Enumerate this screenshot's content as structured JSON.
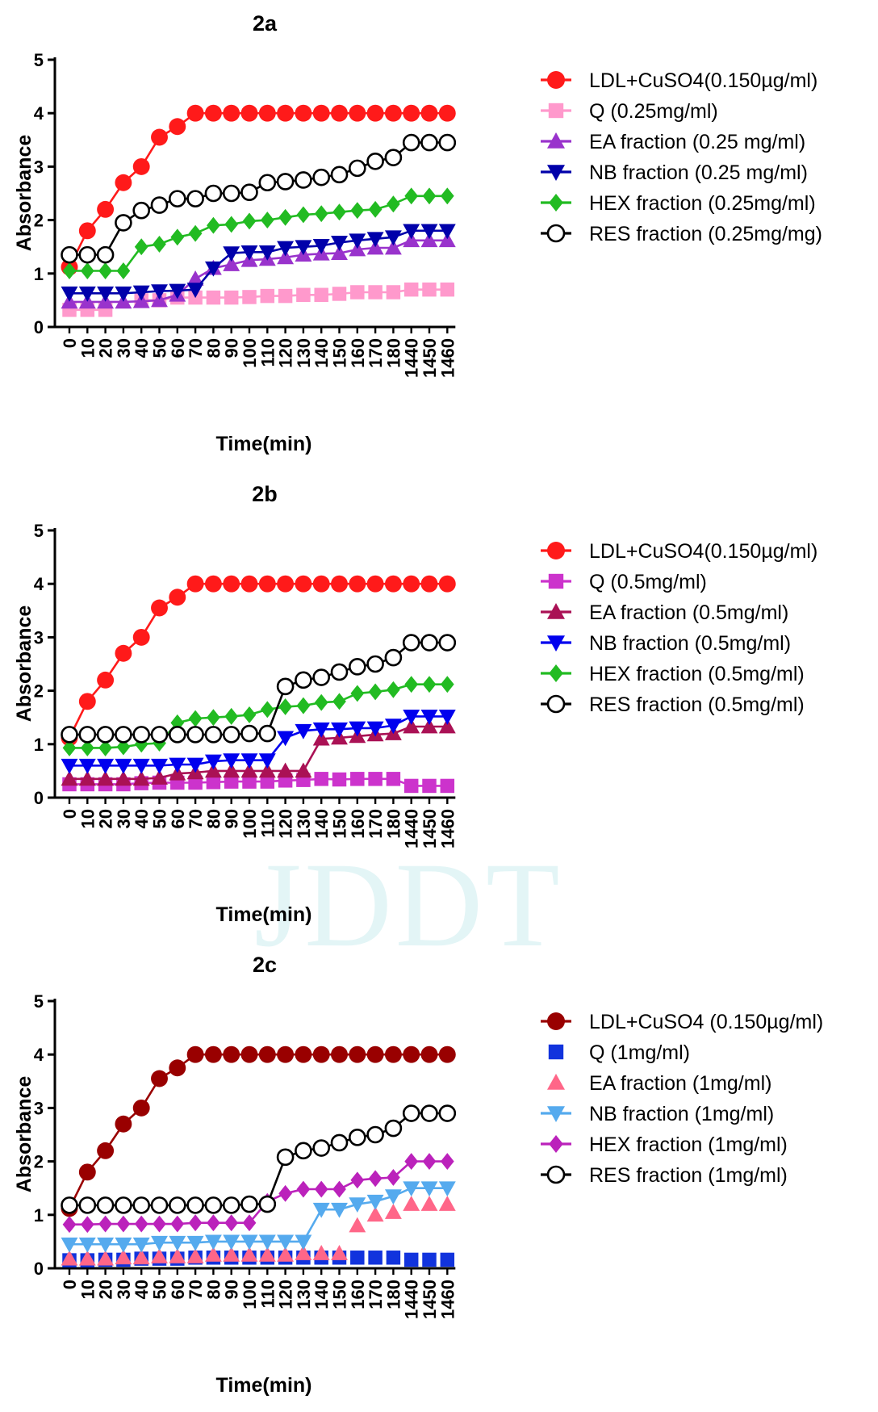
{
  "watermark": "JDDT",
  "chart_data": [
    {
      "type": "line",
      "title": "2a",
      "xlabel": "Time(min)",
      "ylabel": "Absorbance",
      "categories": [
        "0",
        "10",
        "20",
        "30",
        "40",
        "50",
        "60",
        "70",
        "80",
        "90",
        "100",
        "110",
        "120",
        "130",
        "140",
        "150",
        "160",
        "170",
        "180",
        "1440",
        "1450",
        "1460"
      ],
      "ylim": [
        0,
        5
      ],
      "yticks": [
        "0",
        "1",
        "2",
        "3",
        "4",
        "5"
      ],
      "legend_position": "right",
      "series": [
        {
          "name": "LDL+CuSO4(0.150µg/ml)",
          "color": "#ff1a1a",
          "marker": "circle",
          "line": true,
          "values": [
            1.12,
            1.8,
            2.2,
            2.7,
            3.0,
            3.55,
            3.75,
            4.0,
            4.0,
            4.0,
            4.0,
            4.0,
            4.0,
            4.0,
            4.0,
            4.0,
            4.0,
            4.0,
            4.0,
            4.0,
            4.0,
            4.0
          ]
        },
        {
          "name": "Q (0.25mg/ml)",
          "color": "#ff99cc",
          "marker": "square",
          "line": true,
          "values": [
            0.32,
            0.32,
            0.32,
            null,
            0.5,
            0.5,
            0.55,
            0.55,
            0.55,
            0.55,
            0.56,
            0.58,
            0.58,
            0.6,
            0.6,
            0.62,
            0.65,
            0.65,
            0.65,
            0.7,
            0.7,
            0.7
          ]
        },
        {
          "name": "EA fraction  (0.25 mg/ml)",
          "color": "#9933cc",
          "marker": "triangle-up",
          "line": true,
          "values": [
            0.47,
            0.47,
            0.47,
            0.47,
            0.48,
            0.5,
            0.6,
            0.9,
            1.1,
            1.17,
            1.25,
            1.27,
            1.3,
            1.35,
            1.37,
            1.38,
            1.45,
            1.48,
            1.48,
            1.62,
            1.62,
            1.62
          ]
        },
        {
          "name": "NB  fraction (0.25 mg/ml)",
          "color": "#0000aa",
          "marker": "triangle-down",
          "line": true,
          "values": [
            0.63,
            0.63,
            0.63,
            0.63,
            0.65,
            0.67,
            0.68,
            0.7,
            1.1,
            1.38,
            1.4,
            1.4,
            1.48,
            1.5,
            1.52,
            1.58,
            1.62,
            1.65,
            1.68,
            1.8,
            1.8,
            1.8
          ]
        },
        {
          "name": "HEX fraction (0.25mg/ml)",
          "color": "#22bb22",
          "marker": "diamond",
          "line": true,
          "values": [
            1.05,
            1.05,
            1.05,
            1.05,
            1.5,
            1.55,
            1.68,
            1.75,
            1.9,
            1.92,
            1.98,
            2.0,
            2.05,
            2.1,
            2.12,
            2.15,
            2.18,
            2.2,
            2.3,
            2.45,
            2.45,
            2.45
          ]
        },
        {
          "name": "RES fraction (0.25mg/mg)",
          "color": "#000000",
          "marker": "open-circle",
          "line": true,
          "values": [
            1.35,
            1.35,
            1.35,
            1.95,
            2.18,
            2.28,
            2.4,
            2.4,
            2.5,
            2.5,
            2.52,
            2.7,
            2.72,
            2.75,
            2.8,
            2.85,
            2.97,
            3.1,
            3.17,
            3.45,
            3.45,
            3.45
          ]
        }
      ]
    },
    {
      "type": "line",
      "title": "2b",
      "xlabel": "Time(min)",
      "ylabel": "Absorbance",
      "categories": [
        "0",
        "10",
        "20",
        "30",
        "40",
        "50",
        "60",
        "70",
        "80",
        "90",
        "100",
        "110",
        "120",
        "130",
        "140",
        "150",
        "160",
        "170",
        "180",
        "1440",
        "1450",
        "1460"
      ],
      "ylim": [
        0,
        5
      ],
      "yticks": [
        "0",
        "1",
        "2",
        "3",
        "4",
        "5"
      ],
      "legend_position": "right",
      "series": [
        {
          "name": "LDL+CuSO4(0.150µg/ml)",
          "color": "#ff1a1a",
          "marker": "circle",
          "line": true,
          "values": [
            1.12,
            1.8,
            2.2,
            2.7,
            3.0,
            3.55,
            3.75,
            4.0,
            4.0,
            4.0,
            4.0,
            4.0,
            4.0,
            4.0,
            4.0,
            4.0,
            4.0,
            4.0,
            4.0,
            4.0,
            4.0,
            4.0
          ]
        },
        {
          "name": "Q (0.5mg/ml)",
          "color": "#cc33cc",
          "marker": "square",
          "line": true,
          "values": [
            0.25,
            0.25,
            0.25,
            0.25,
            0.27,
            0.28,
            0.28,
            0.28,
            0.29,
            0.3,
            0.3,
            0.3,
            0.32,
            0.33,
            0.35,
            0.34,
            0.35,
            0.35,
            0.35,
            0.22,
            0.22,
            0.22
          ]
        },
        {
          "name": "EA fraction (0.5mg/ml)",
          "color": "#aa1155",
          "marker": "triangle-up",
          "line": true,
          "values": [
            0.35,
            0.35,
            0.35,
            0.35,
            0.35,
            0.37,
            0.45,
            0.47,
            0.5,
            0.5,
            0.5,
            0.5,
            0.5,
            0.5,
            1.1,
            1.12,
            1.15,
            1.18,
            1.2,
            1.33,
            1.33,
            1.33
          ]
        },
        {
          "name": "NB fraction (0.5mg/ml)",
          "color": "#0000ee",
          "marker": "triangle-down",
          "line": true,
          "values": [
            0.6,
            0.6,
            0.6,
            0.6,
            0.6,
            0.6,
            0.62,
            0.62,
            0.68,
            0.7,
            0.7,
            0.7,
            1.12,
            1.25,
            1.28,
            1.28,
            1.3,
            1.3,
            1.35,
            1.52,
            1.52,
            1.52
          ]
        },
        {
          "name": "HEX  fraction (0.5mg/ml)",
          "color": "#22bb22",
          "marker": "diamond",
          "line": true,
          "values": [
            0.93,
            0.93,
            0.93,
            0.95,
            1.0,
            1.02,
            1.4,
            1.48,
            1.5,
            1.52,
            1.55,
            1.65,
            1.7,
            1.72,
            1.78,
            1.8,
            1.95,
            1.98,
            2.02,
            2.12,
            2.12,
            2.12
          ]
        },
        {
          "name": "RES fraction (0.5mg/ml)",
          "color": "#000000",
          "marker": "open-circle",
          "line": true,
          "values": [
            1.18,
            1.18,
            1.18,
            1.18,
            1.18,
            1.18,
            1.18,
            1.18,
            1.18,
            1.18,
            1.2,
            1.2,
            2.08,
            2.2,
            2.25,
            2.35,
            2.45,
            2.5,
            2.62,
            2.9,
            2.9,
            2.9
          ]
        }
      ]
    },
    {
      "type": "line",
      "title": "2c",
      "xlabel": "Time(min)",
      "ylabel": "Absorbance",
      "categories": [
        "0",
        "10",
        "20",
        "30",
        "40",
        "50",
        "60",
        "70",
        "80",
        "90",
        "100",
        "110",
        "120",
        "130",
        "140",
        "150",
        "160",
        "170",
        "180",
        "1440",
        "1450",
        "1460"
      ],
      "ylim": [
        0,
        5
      ],
      "yticks": [
        "0",
        "1",
        "2",
        "3",
        "4",
        "5"
      ],
      "legend_position": "right",
      "series": [
        {
          "name": "LDL+CuSO4 (0.150µg/ml)",
          "color": "#990000",
          "marker": "circle",
          "line": true,
          "values": [
            1.12,
            1.8,
            2.2,
            2.7,
            3.0,
            3.55,
            3.75,
            4.0,
            4.0,
            4.0,
            4.0,
            4.0,
            4.0,
            4.0,
            4.0,
            4.0,
            4.0,
            4.0,
            4.0,
            4.0,
            4.0,
            4.0
          ]
        },
        {
          "name": "Q (1mg/ml)",
          "color": "#1133dd",
          "marker": "square",
          "line": false,
          "values": [
            0.15,
            0.15,
            0.16,
            0.16,
            0.18,
            0.18,
            0.18,
            0.2,
            0.2,
            0.2,
            0.2,
            0.2,
            0.2,
            0.2,
            0.2,
            0.2,
            0.2,
            0.2,
            0.2,
            0.16,
            0.16,
            0.16
          ]
        },
        {
          "name": "EA fraction  (1mg/ml)",
          "color": "#ff6688",
          "marker": "triangle-up",
          "line": false,
          "values": [
            0.18,
            0.18,
            0.18,
            0.2,
            0.2,
            0.22,
            0.22,
            0.22,
            0.25,
            0.25,
            0.25,
            0.25,
            0.25,
            0.28,
            0.28,
            0.28,
            0.8,
            1.0,
            1.05,
            1.2,
            1.2,
            1.2
          ]
        },
        {
          "name": "NB fraction (1mg/ml)",
          "color": "#55aaee",
          "marker": "triangle-down",
          "line": true,
          "values": [
            0.45,
            0.45,
            0.45,
            0.45,
            0.45,
            0.48,
            0.48,
            0.48,
            0.5,
            0.5,
            0.5,
            0.5,
            0.5,
            0.5,
            1.1,
            1.1,
            1.2,
            1.25,
            1.35,
            1.5,
            1.5,
            1.5
          ]
        },
        {
          "name": "HEX fraction  (1mg/ml)",
          "color": "#bb22bb",
          "marker": "diamond",
          "line": true,
          "values": [
            0.82,
            0.82,
            0.83,
            0.83,
            0.83,
            0.83,
            0.83,
            0.85,
            0.85,
            0.85,
            0.85,
            1.25,
            1.4,
            1.48,
            1.48,
            1.48,
            1.65,
            1.68,
            1.7,
            2.0,
            2.0,
            2.0
          ]
        },
        {
          "name": "RES fraction (1mg/ml)",
          "color": "#000000",
          "marker": "open-circle",
          "line": true,
          "values": [
            1.18,
            1.18,
            1.18,
            1.18,
            1.18,
            1.18,
            1.18,
            1.18,
            1.18,
            1.18,
            1.2,
            1.2,
            2.08,
            2.2,
            2.25,
            2.35,
            2.45,
            2.5,
            2.62,
            2.9,
            2.9,
            2.9
          ]
        }
      ]
    }
  ]
}
